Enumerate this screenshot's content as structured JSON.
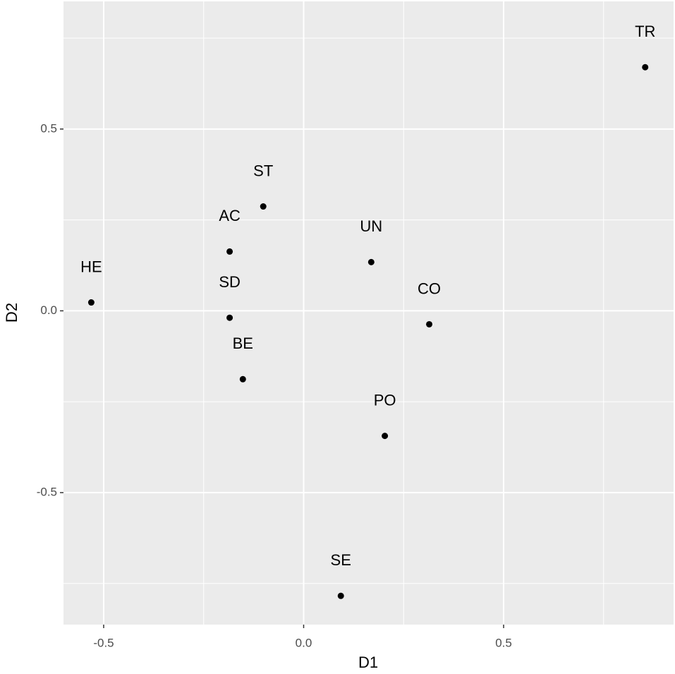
{
  "chart_data": {
    "type": "scatter",
    "xlabel": "D1",
    "ylabel": "D2",
    "labels": [
      "TR",
      "ST",
      "AC",
      "UN",
      "HE",
      "SD",
      "CO",
      "BE",
      "PO",
      "SE"
    ],
    "x": [
      0.854,
      -0.101,
      -0.185,
      0.169,
      -0.531,
      -0.185,
      0.314,
      -0.152,
      0.203,
      0.093
    ],
    "y": [
      0.67,
      0.287,
      0.163,
      0.134,
      0.023,
      -0.019,
      -0.037,
      -0.188,
      -0.344,
      -0.784
    ],
    "color": "#000000",
    "xlim": [
      -0.6005,
      0.925
    ],
    "ylim": [
      -0.863,
      0.851
    ],
    "xticks": [
      -0.5,
      {
        "value": 0,
        "label": "0.0"
      },
      0.5
    ],
    "yticks": [
      -0.5,
      {
        "value": 0,
        "label": "0.0"
      },
      0.5
    ],
    "x_minor_ticks": [
      -0.25,
      0.25,
      0.75
    ],
    "y_minor_ticks": [
      -0.75,
      -0.25,
      0.25,
      0.75
    ],
    "grid": true
  }
}
